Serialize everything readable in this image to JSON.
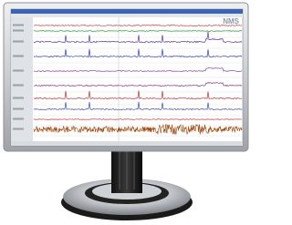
{
  "screen": {
    "logo": "NMS"
  }
}
